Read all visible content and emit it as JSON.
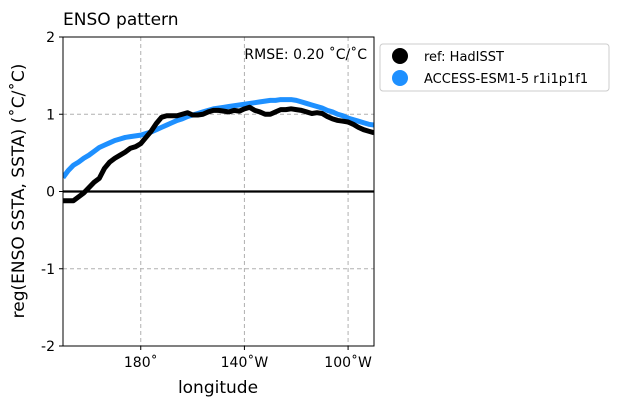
{
  "chart_data": {
    "type": "line",
    "title": "ENSO pattern",
    "xlabel": "longitude",
    "ylabel": "reg(ENSO SSTA, SSTA) (˚C/˚C)",
    "annotation": "RMSE: 0.20 ˚C/˚C",
    "xlim": [
      150,
      270
    ],
    "ylim": [
      -2,
      2
    ],
    "x_ticks": [
      {
        "value": 180,
        "label": "180˚"
      },
      {
        "value": 220,
        "label": "140˚W"
      },
      {
        "value": 260,
        "label": "100˚W"
      }
    ],
    "y_ticks": [
      {
        "value": 2,
        "label": "2"
      },
      {
        "value": 1,
        "label": "1"
      },
      {
        "value": 0,
        "label": "0"
      },
      {
        "value": -1,
        "label": "-1"
      },
      {
        "value": -2,
        "label": "-2"
      }
    ],
    "grid": true,
    "zero_line": true,
    "legend_position": "outside-right",
    "series": [
      {
        "name": "ref: HadISST",
        "color": "#000000",
        "x": [
          150,
          152,
          154,
          156,
          158,
          160,
          162,
          164,
          166,
          168,
          170,
          172,
          174,
          176,
          178,
          180,
          182,
          184,
          186,
          188,
          190,
          192,
          194,
          196,
          198,
          200,
          202,
          204,
          206,
          208,
          210,
          212,
          214,
          216,
          218,
          220,
          222,
          224,
          226,
          228,
          230,
          232,
          234,
          236,
          238,
          240,
          242,
          244,
          246,
          248,
          250,
          252,
          254,
          256,
          258,
          260,
          262,
          264,
          266,
          268,
          270
        ],
        "y": [
          -0.12,
          -0.12,
          -0.12,
          -0.07,
          -0.02,
          0.05,
          0.12,
          0.17,
          0.3,
          0.38,
          0.43,
          0.47,
          0.51,
          0.56,
          0.58,
          0.62,
          0.7,
          0.78,
          0.88,
          0.96,
          0.98,
          0.98,
          0.98,
          1.0,
          1.02,
          0.99,
          0.99,
          1.0,
          1.03,
          1.05,
          1.05,
          1.04,
          1.03,
          1.05,
          1.04,
          1.07,
          1.09,
          1.05,
          1.03,
          1.0,
          1.0,
          1.03,
          1.06,
          1.06,
          1.07,
          1.06,
          1.05,
          1.03,
          1.01,
          1.02,
          1.01,
          0.97,
          0.94,
          0.92,
          0.91,
          0.9,
          0.87,
          0.83,
          0.8,
          0.78,
          0.76
        ]
      },
      {
        "name": "ACCESS-ESM1-5 r1i1p1f1",
        "color": "#1e90ff",
        "x": [
          150,
          152,
          154,
          156,
          158,
          160,
          162,
          164,
          166,
          168,
          170,
          172,
          174,
          176,
          178,
          180,
          182,
          184,
          186,
          188,
          190,
          192,
          194,
          196,
          198,
          200,
          202,
          204,
          206,
          208,
          210,
          212,
          214,
          216,
          218,
          220,
          222,
          224,
          226,
          228,
          230,
          232,
          234,
          236,
          238,
          240,
          242,
          244,
          246,
          248,
          250,
          252,
          254,
          256,
          258,
          260,
          262,
          264,
          266,
          268,
          270
        ],
        "y": [
          0.18,
          0.27,
          0.34,
          0.38,
          0.43,
          0.47,
          0.52,
          0.57,
          0.6,
          0.63,
          0.66,
          0.68,
          0.7,
          0.71,
          0.72,
          0.73,
          0.75,
          0.77,
          0.8,
          0.83,
          0.86,
          0.89,
          0.92,
          0.94,
          0.97,
          0.99,
          1.01,
          1.03,
          1.05,
          1.07,
          1.08,
          1.09,
          1.1,
          1.11,
          1.12,
          1.13,
          1.14,
          1.15,
          1.16,
          1.17,
          1.18,
          1.18,
          1.19,
          1.19,
          1.19,
          1.18,
          1.16,
          1.14,
          1.12,
          1.1,
          1.08,
          1.05,
          1.03,
          1.0,
          0.98,
          0.95,
          0.93,
          0.91,
          0.89,
          0.87,
          0.86
        ]
      }
    ]
  }
}
